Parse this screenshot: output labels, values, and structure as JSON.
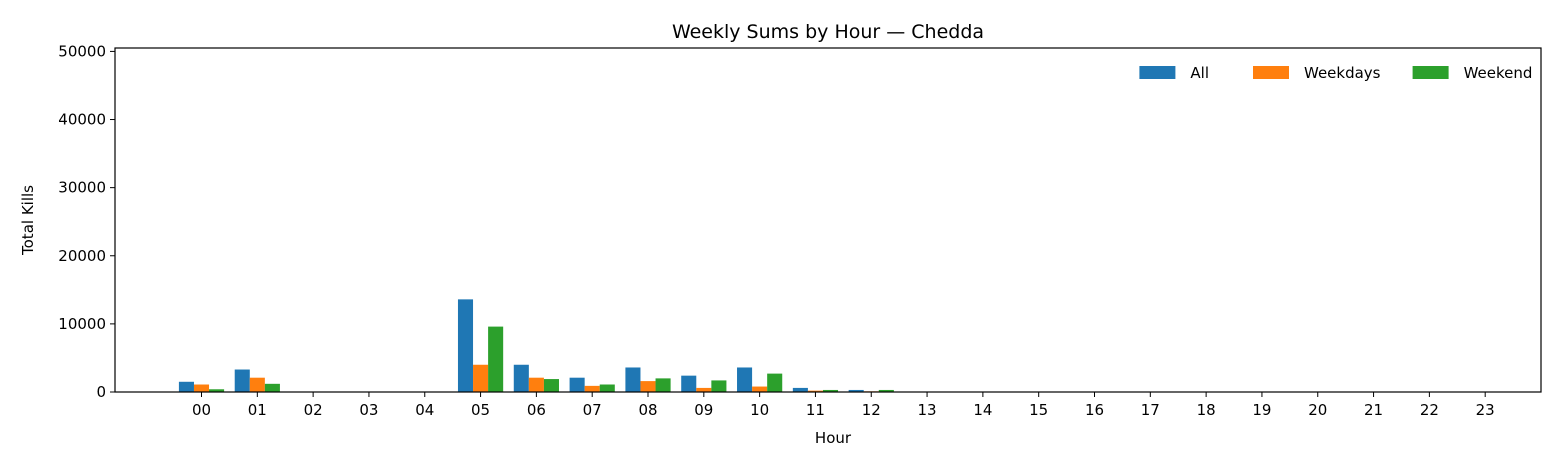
{
  "chart_data": {
    "type": "bar",
    "title": "Weekly Sums by Hour — Chedda",
    "xlabel": "Hour",
    "ylabel": "Total Kills",
    "categories": [
      "00",
      "01",
      "02",
      "03",
      "04",
      "05",
      "06",
      "07",
      "08",
      "09",
      "10",
      "11",
      "12",
      "13",
      "14",
      "15",
      "16",
      "17",
      "18",
      "19",
      "20",
      "21",
      "22",
      "23"
    ],
    "series": [
      {
        "name": "All",
        "color": "#1f77b4",
        "values": [
          1500,
          3300,
          0,
          0,
          0,
          13600,
          4000,
          2100,
          3600,
          2400,
          3600,
          600,
          300,
          0,
          0,
          0,
          0,
          0,
          0,
          0,
          0,
          0,
          0,
          0
        ]
      },
      {
        "name": "Weekdays",
        "color": "#ff7f0e",
        "values": [
          1100,
          2100,
          0,
          0,
          0,
          4000,
          2100,
          900,
          1600,
          600,
          800,
          200,
          100,
          0,
          0,
          0,
          0,
          0,
          0,
          0,
          0,
          0,
          0,
          0
        ]
      },
      {
        "name": "Weekend",
        "color": "#2ca02c",
        "values": [
          400,
          1200,
          0,
          0,
          0,
          9600,
          1900,
          1100,
          2000,
          1700,
          2700,
          300,
          300,
          0,
          0,
          0,
          0,
          0,
          0,
          0,
          0,
          0,
          0,
          0
        ]
      }
    ],
    "ylim": [
      0,
      50500
    ],
    "yticks": [
      0,
      10000,
      20000,
      30000,
      40000,
      50000
    ],
    "legend": "top-right",
    "grid": false
  }
}
